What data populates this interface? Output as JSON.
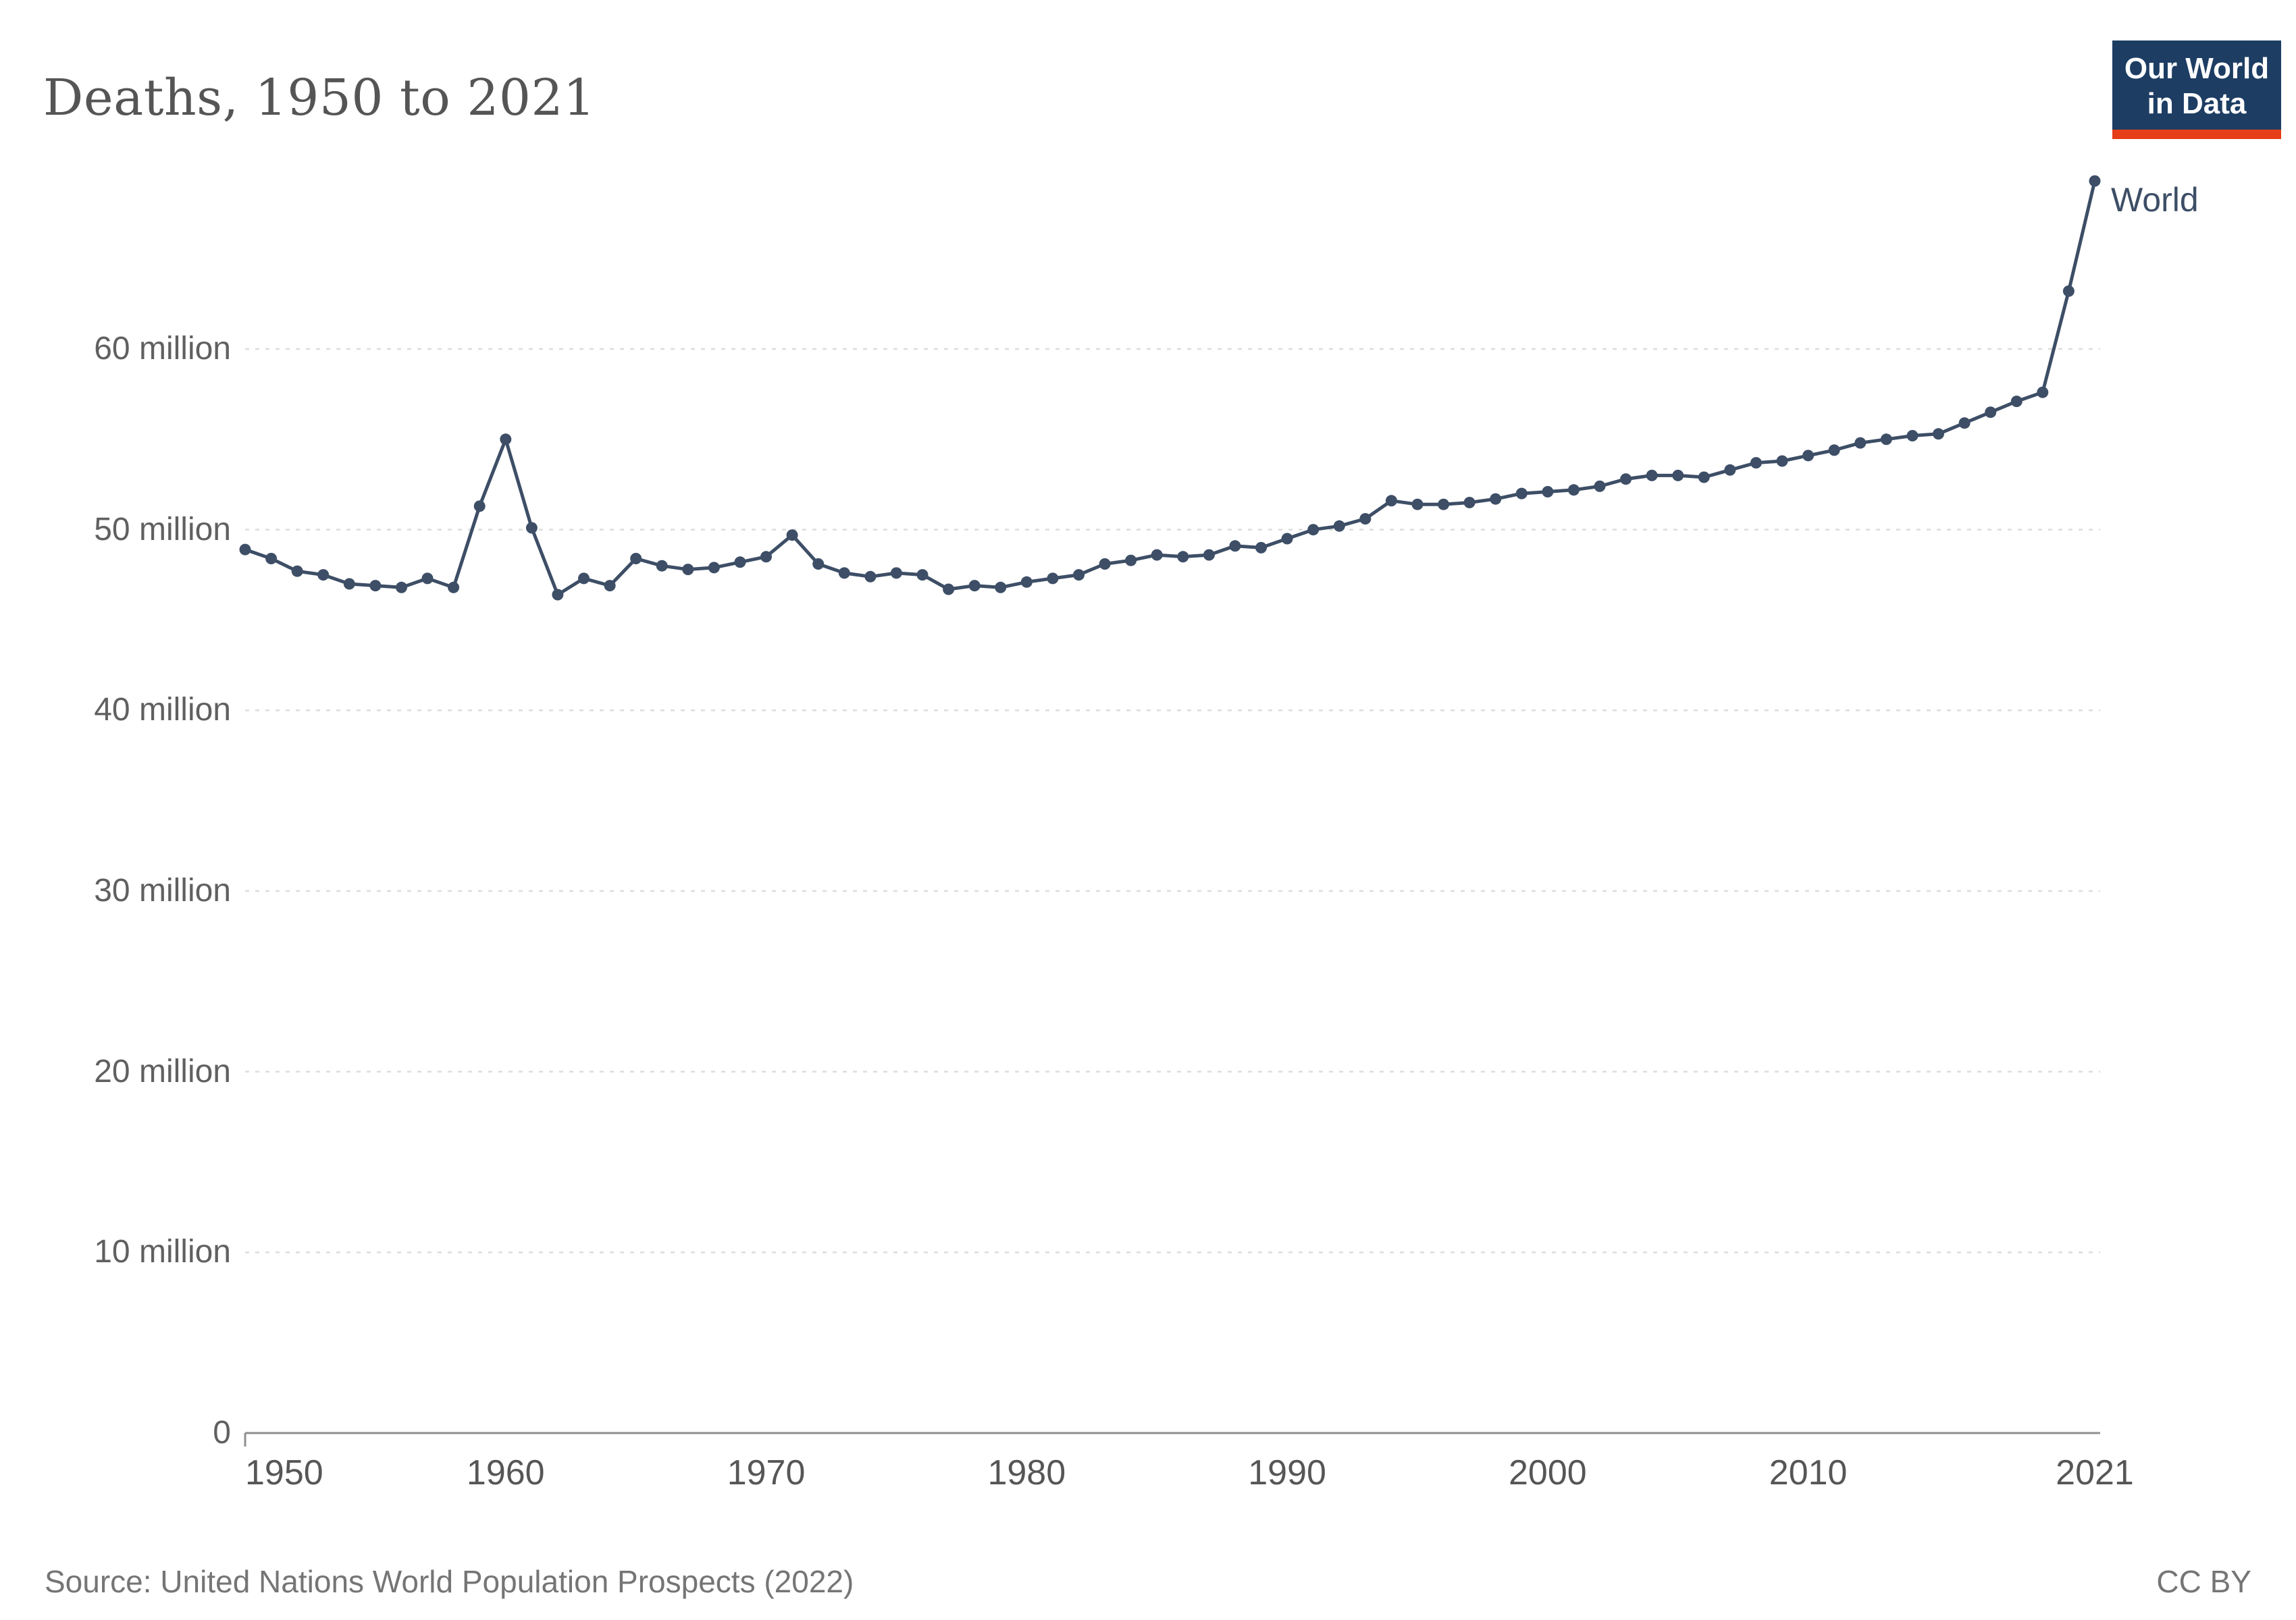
{
  "header": {
    "title": "Deaths, 1950 to 2021",
    "logo": {
      "line1": "Our World",
      "line2": "in Data"
    }
  },
  "chart_data": {
    "type": "line",
    "title": "Deaths, 1950 to 2021",
    "unit": "deaths per year (millions)",
    "legend_position": "end-of-line label",
    "grid": "horizontal dashed",
    "xlim": [
      1950,
      2021
    ],
    "ylim_millions": [
      0,
      70
    ],
    "x": [
      1950,
      1951,
      1952,
      1953,
      1954,
      1955,
      1956,
      1957,
      1958,
      1959,
      1960,
      1961,
      1962,
      1963,
      1964,
      1965,
      1966,
      1967,
      1968,
      1969,
      1970,
      1971,
      1972,
      1973,
      1974,
      1975,
      1976,
      1977,
      1978,
      1979,
      1980,
      1981,
      1982,
      1983,
      1984,
      1985,
      1986,
      1987,
      1988,
      1989,
      1990,
      1991,
      1992,
      1993,
      1994,
      1995,
      1996,
      1997,
      1998,
      1999,
      2000,
      2001,
      2002,
      2003,
      2004,
      2005,
      2006,
      2007,
      2008,
      2009,
      2010,
      2011,
      2012,
      2013,
      2014,
      2015,
      2016,
      2017,
      2018,
      2019,
      2020,
      2021
    ],
    "series": [
      {
        "name": "World",
        "values_millions": [
          48.9,
          48.4,
          47.7,
          47.5,
          47.0,
          46.9,
          46.8,
          47.3,
          46.8,
          51.3,
          55.0,
          50.1,
          46.4,
          47.3,
          46.9,
          48.4,
          48.0,
          47.8,
          47.9,
          48.2,
          48.5,
          49.7,
          48.1,
          47.6,
          47.4,
          47.6,
          47.5,
          46.7,
          46.9,
          46.8,
          47.1,
          47.3,
          47.5,
          48.1,
          48.3,
          48.6,
          48.5,
          48.6,
          49.1,
          49.0,
          49.5,
          50.0,
          50.2,
          50.6,
          51.6,
          51.4,
          51.4,
          51.5,
          51.7,
          52.0,
          52.1,
          52.2,
          52.4,
          52.8,
          53.0,
          53.0,
          52.9,
          53.3,
          53.7,
          53.8,
          54.1,
          54.4,
          54.8,
          55.0,
          55.2,
          55.3,
          55.9,
          56.5,
          57.1,
          57.6,
          63.2,
          69.3
        ]
      }
    ],
    "yticks": [
      {
        "value_millions": 0,
        "label": "0"
      },
      {
        "value_millions": 10,
        "label": "10 million"
      },
      {
        "value_millions": 20,
        "label": "20 million"
      },
      {
        "value_millions": 30,
        "label": "30 million"
      },
      {
        "value_millions": 40,
        "label": "40 million"
      },
      {
        "value_millions": 50,
        "label": "50 million"
      },
      {
        "value_millions": 60,
        "label": "60 million"
      }
    ],
    "xticks": [
      {
        "value": 1950,
        "label": "1950"
      },
      {
        "value": 1960,
        "label": "1960"
      },
      {
        "value": 1970,
        "label": "1970"
      },
      {
        "value": 1980,
        "label": "1980"
      },
      {
        "value": 1990,
        "label": "1990"
      },
      {
        "value": 2000,
        "label": "2000"
      },
      {
        "value": 2010,
        "label": "2010"
      },
      {
        "value": 2021,
        "label": "2021"
      }
    ],
    "entity_label": "World"
  },
  "footer": {
    "source": "Source: United Nations World Population Prospects (2022)",
    "license": "CC BY"
  },
  "colors": {
    "line": "#3d4e66",
    "grid": "#dcdcdc",
    "axis": "#8f8f8f",
    "logo_bg": "#1d3d63",
    "logo_red": "#e63e19",
    "title_text": "#555555",
    "tick_text": "#606060"
  }
}
